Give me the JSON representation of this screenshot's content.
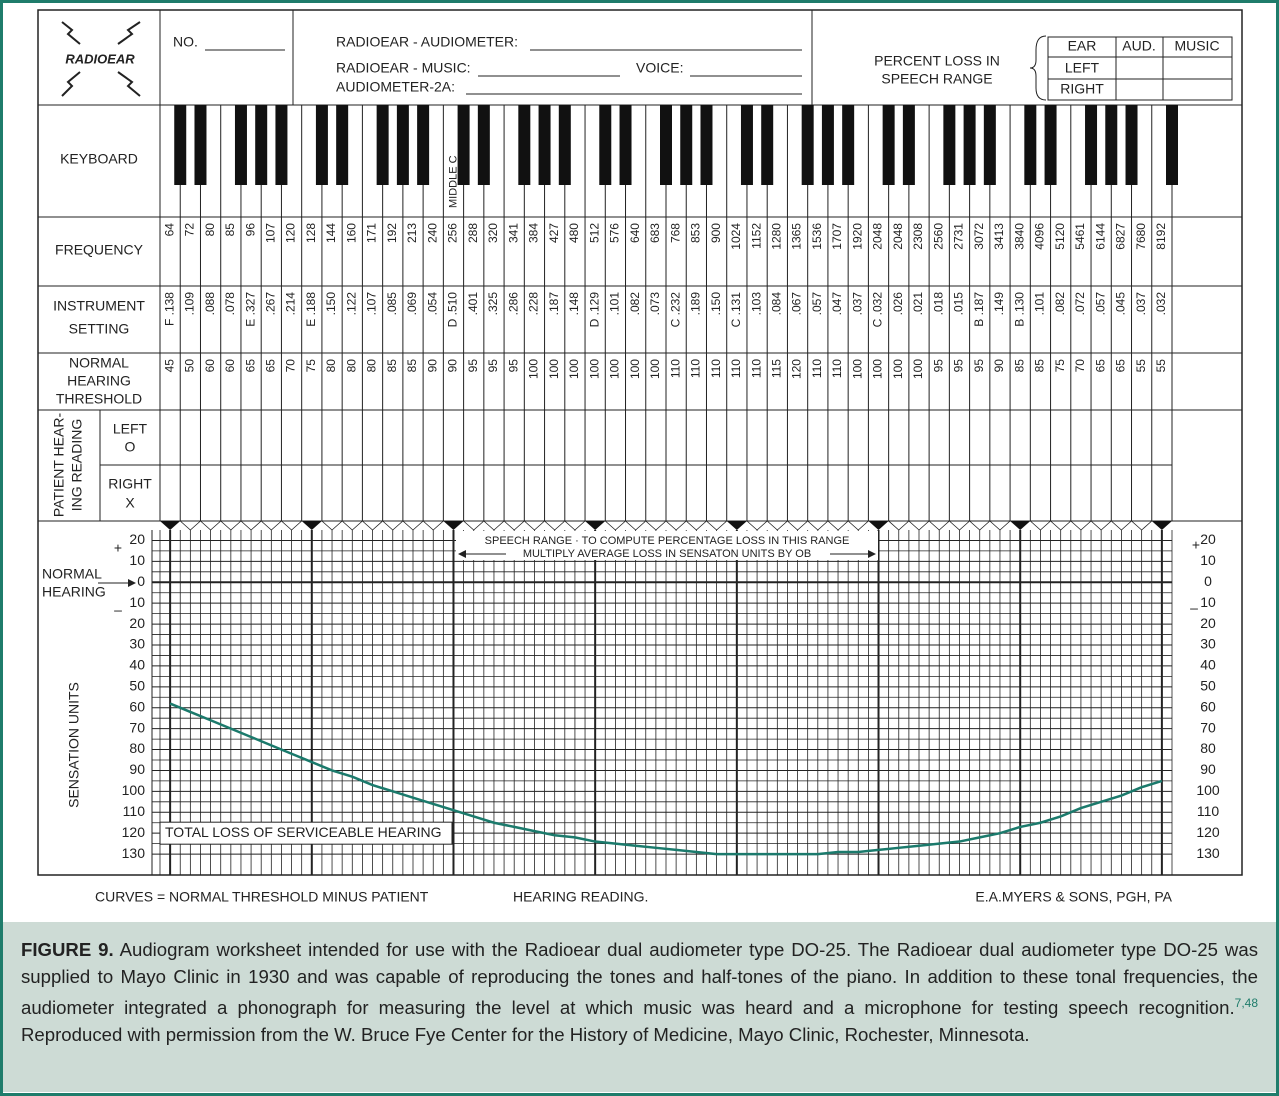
{
  "header": {
    "logo": "RADIOEAR",
    "no": "NO.",
    "audiometer": "RADIOEAR - AUDIOMETER:",
    "music": "RADIOEAR - MUSIC:",
    "voice": "VOICE:",
    "audiometer_2a": "AUDIOMETER-2A:",
    "percent_loss": [
      "PERCENT LOSS IN",
      "SPEECH RANGE"
    ],
    "loss_table": {
      "headers": [
        "EAR",
        "AUD.",
        "MUSIC"
      ],
      "rows": [
        "LEFT",
        "RIGHT"
      ]
    }
  },
  "row_labels": {
    "keyboard": "KEYBOARD",
    "frequency": "FREQUENCY",
    "instrument": [
      "INSTRUMENT",
      "SETTING"
    ],
    "threshold": [
      "NORMAL",
      "HEARING",
      "THRESHOLD"
    ],
    "patient": [
      "PATIENT HEAR-",
      "ING READING"
    ],
    "left": [
      "LEFT",
      "O"
    ],
    "right": [
      "RIGHT",
      "X"
    ]
  },
  "middle_c": "MIDDLE C",
  "columns": {
    "frequency": [
      64,
      72,
      80,
      85,
      96,
      107,
      120,
      128,
      144,
      160,
      171,
      192,
      213,
      240,
      256,
      288,
      320,
      341,
      384,
      427,
      480,
      512,
      576,
      640,
      683,
      768,
      853,
      900,
      1024,
      1152,
      1280,
      1365,
      1536,
      1707,
      1920,
      2048,
      2048,
      2308,
      2560,
      2731,
      3072,
      3413,
      3840,
      4096,
      5120,
      5461,
      6144,
      6827,
      7680,
      8192
    ],
    "instrument_setting": [
      "F .138",
      ".109",
      ".088",
      ".078",
      "E .327",
      ".267",
      ".214",
      "E .188",
      ".150",
      ".122",
      ".107",
      ".085",
      ".069",
      ".054",
      "D .510",
      ".401",
      ".325",
      ".286",
      ".228",
      ".187",
      ".148",
      "D .129",
      ".101",
      ".082",
      ".073",
      "C .232",
      ".189",
      ".150",
      "C .131",
      ".103",
      ".084",
      ".067",
      ".057",
      ".047",
      ".037",
      "C .032",
      ".026",
      ".021",
      ".018",
      ".015",
      "B .187",
      ".149",
      "B .130",
      ".101",
      ".082",
      ".072",
      ".057",
      ".045",
      ".037",
      ".032"
    ],
    "normal_threshold": [
      45,
      50,
      60,
      60,
      65,
      65,
      70,
      75,
      80,
      80,
      80,
      85,
      85,
      90,
      90,
      95,
      95,
      95,
      100,
      100,
      100,
      100,
      100,
      100,
      100,
      110,
      110,
      110,
      110,
      110,
      115,
      120,
      110,
      110,
      100,
      100,
      100,
      100,
      95,
      95,
      95,
      90,
      85,
      85,
      75,
      70,
      65,
      65,
      55,
      55
    ]
  },
  "sensation": {
    "axis_label": "SENSATION UNITS",
    "ylim": [
      -25,
      140
    ],
    "yticks": [
      {
        "value": -20,
        "label": "20"
      },
      {
        "value": -10,
        "label": "10"
      },
      0,
      10,
      20,
      30,
      40,
      50,
      60,
      70,
      80,
      90,
      100,
      110,
      120,
      130
    ],
    "plus": "+",
    "minus": "–",
    "normal_hearing": [
      "NORMAL",
      "HEARING"
    ],
    "speech_range": [
      "SPEECH RANGE · TO COMPUTE PERCENTAGE LOSS IN THIS RANGE",
      "MULTIPLY AVERAGE LOSS IN SENSATON UNITS BY OB"
    ],
    "total_loss": "TOTAL LOSS OF SERVICEABLE HEARING",
    "curve_color": "#1b7a6c",
    "curve": [
      58,
      62,
      66,
      70,
      74,
      78,
      82,
      86,
      90,
      93,
      97,
      100,
      103,
      106,
      109,
      112,
      115,
      117,
      119,
      121,
      122,
      124,
      125,
      126,
      127,
      128,
      129,
      130,
      130,
      130,
      130,
      130,
      130,
      129,
      129,
      128,
      127,
      126,
      125,
      124,
      122,
      120,
      117,
      115,
      112,
      108,
      105,
      102,
      98,
      95
    ]
  },
  "footer": {
    "curves": "CURVES = NORMAL THRESHOLD MINUS PATIENT",
    "hearing": "HEARING READING.",
    "maker": "E.A.MYERS & SONS, PGH, PA"
  },
  "caption": {
    "label": "FIGURE 9.",
    "text": "Audiogram worksheet intended for use with the Radioear dual audiometer type DO-25. The Radioear dual audiometer type DO-25 was supplied to Mayo Clinic in 1930 and was capable of reproducing the tones and half-tones of the piano. In addition to these tonal frequencies, the audiometer integrated a phonograph for measuring the level at which music was heard and a microphone for testing speech recognition.",
    "refs": "7,48",
    "text2": "Reproduced with permission from the W. Bruce Fye Center for the History of Medicine, Mayo Clinic, Rochester, Minnesota."
  }
}
